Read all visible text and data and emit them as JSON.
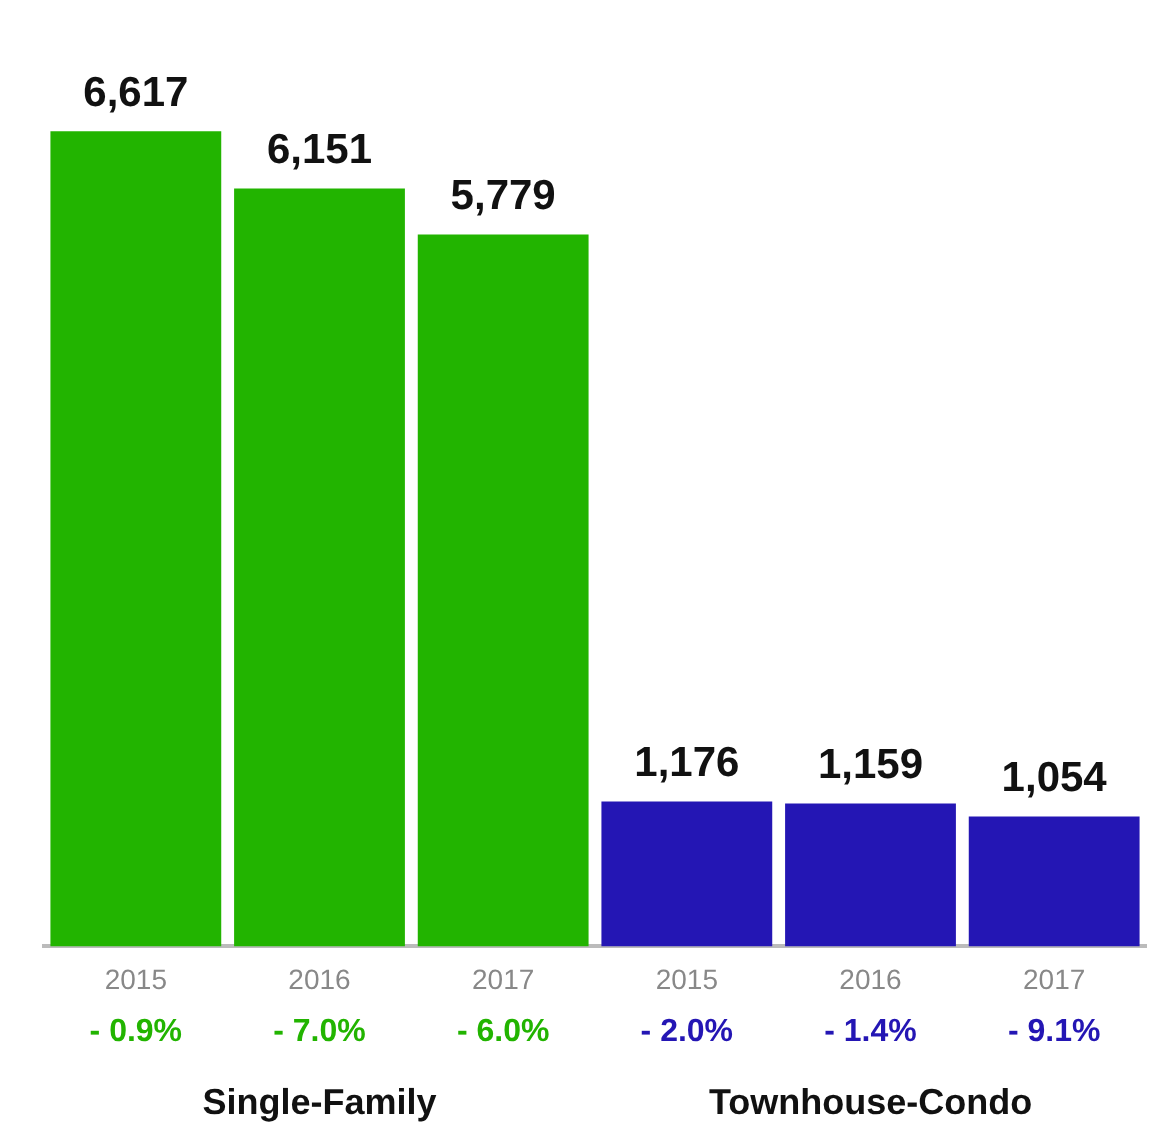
{
  "chart_data": {
    "type": "bar",
    "categories": [
      "2015",
      "2016",
      "2017",
      "2015",
      "2016",
      "2017"
    ],
    "series": [
      {
        "color": "#22b400",
        "values": [
          6617,
          6151,
          5779,
          null,
          null,
          null
        ],
        "value_labels": [
          "6,617",
          "6,151",
          "5,779",
          null,
          null,
          null
        ]
      },
      {
        "color": "#2416b4",
        "values": [
          null,
          null,
          null,
          1176,
          1159,
          1054
        ],
        "value_labels": [
          null,
          null,
          null,
          "1,176",
          "1,159",
          "1,054"
        ]
      }
    ],
    "legend": false,
    "grid": false,
    "tick_labels": "x",
    "annotations": [
      "- 0.9%",
      "- 7.0%",
      "- 6.0%",
      "- 2.0%",
      "- 1.4%",
      "- 9.1%",
      "Single-Family",
      "Townhouse-Condo"
    ]
  }
}
